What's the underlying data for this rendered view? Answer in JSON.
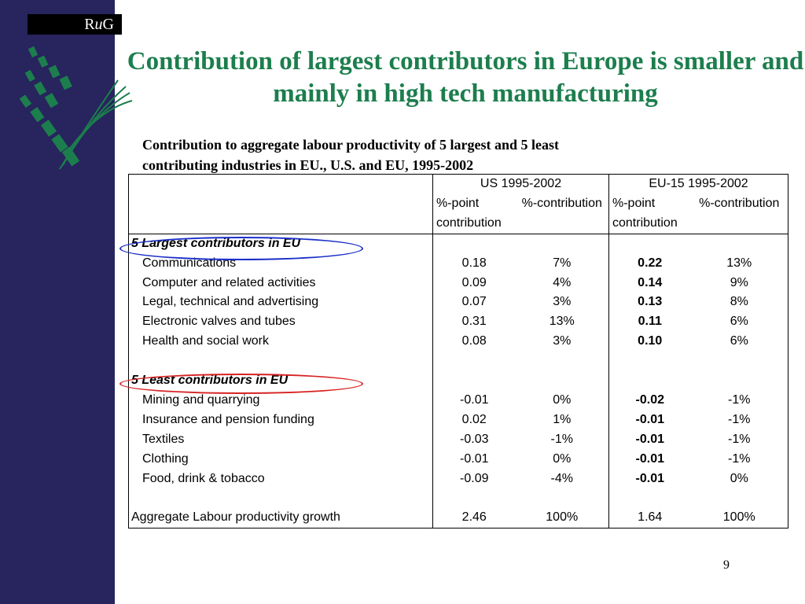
{
  "logo": {
    "text": "RuG"
  },
  "slide": {
    "title": "Contribution of largest contributors in Europe is smaller and mainly in high tech manufacturing",
    "subtitle_line1": "Contribution to aggregate labour productivity of 5 largest and 5 least",
    "subtitle_line2": "contributing industries in EU., U.S. and EU,  1995-2002",
    "page_number": "9"
  },
  "table": {
    "groups": [
      "US 1995-2002",
      "EU-15 1995-2002"
    ],
    "sub_headers": {
      "pp_line1": "%-point",
      "pp_line2": "contribution",
      "pc": "%-contribution"
    },
    "section_largest": "5 Largest contributors in EU",
    "section_least": "5 Least contributors in EU",
    "largest": [
      {
        "label": "Communications",
        "us_pp": "0.18",
        "us_pc": "7%",
        "eu_pp": "0.22",
        "eu_pc": "13%"
      },
      {
        "label": "Computer and related activities",
        "us_pp": "0.09",
        "us_pc": "4%",
        "eu_pp": "0.14",
        "eu_pc": "9%"
      },
      {
        "label": "Legal, technical and advertising",
        "us_pp": "0.07",
        "us_pc": "3%",
        "eu_pp": "0.13",
        "eu_pc": "8%"
      },
      {
        "label": "Electronic valves and tubes",
        "us_pp": "0.31",
        "us_pc": "13%",
        "eu_pp": "0.11",
        "eu_pc": "6%"
      },
      {
        "label": "Health and social work",
        "us_pp": "0.08",
        "us_pc": "3%",
        "eu_pp": "0.10",
        "eu_pc": "6%"
      }
    ],
    "least": [
      {
        "label": "Mining and quarrying",
        "us_pp": "-0.01",
        "us_pc": "0%",
        "eu_pp": "-0.02",
        "eu_pc": "-1%"
      },
      {
        "label": "Insurance and pension funding",
        "us_pp": "0.02",
        "us_pc": "1%",
        "eu_pp": "-0.01",
        "eu_pc": "-1%"
      },
      {
        "label": "Textiles",
        "us_pp": "-0.03",
        "us_pc": "-1%",
        "eu_pp": "-0.01",
        "eu_pc": "-1%"
      },
      {
        "label": "Clothing",
        "us_pp": "-0.01",
        "us_pc": "0%",
        "eu_pp": "-0.01",
        "eu_pc": "-1%"
      },
      {
        "label": "Food, drink & tobacco",
        "us_pp": "-0.09",
        "us_pc": "-4%",
        "eu_pp": "-0.01",
        "eu_pc": "0%"
      }
    ],
    "aggregate": {
      "label": "Aggregate Labour productivity growth",
      "us_pp": "2.46",
      "us_pc": "100%",
      "eu_pp": "1.64",
      "eu_pc": "100%"
    }
  },
  "colors": {
    "sidebar": "#27245e",
    "title": "#1c7e4d",
    "logo_leaves": "#1c7e4d",
    "highlight_blue": "#1b2fc9",
    "highlight_red": "#d62222"
  }
}
